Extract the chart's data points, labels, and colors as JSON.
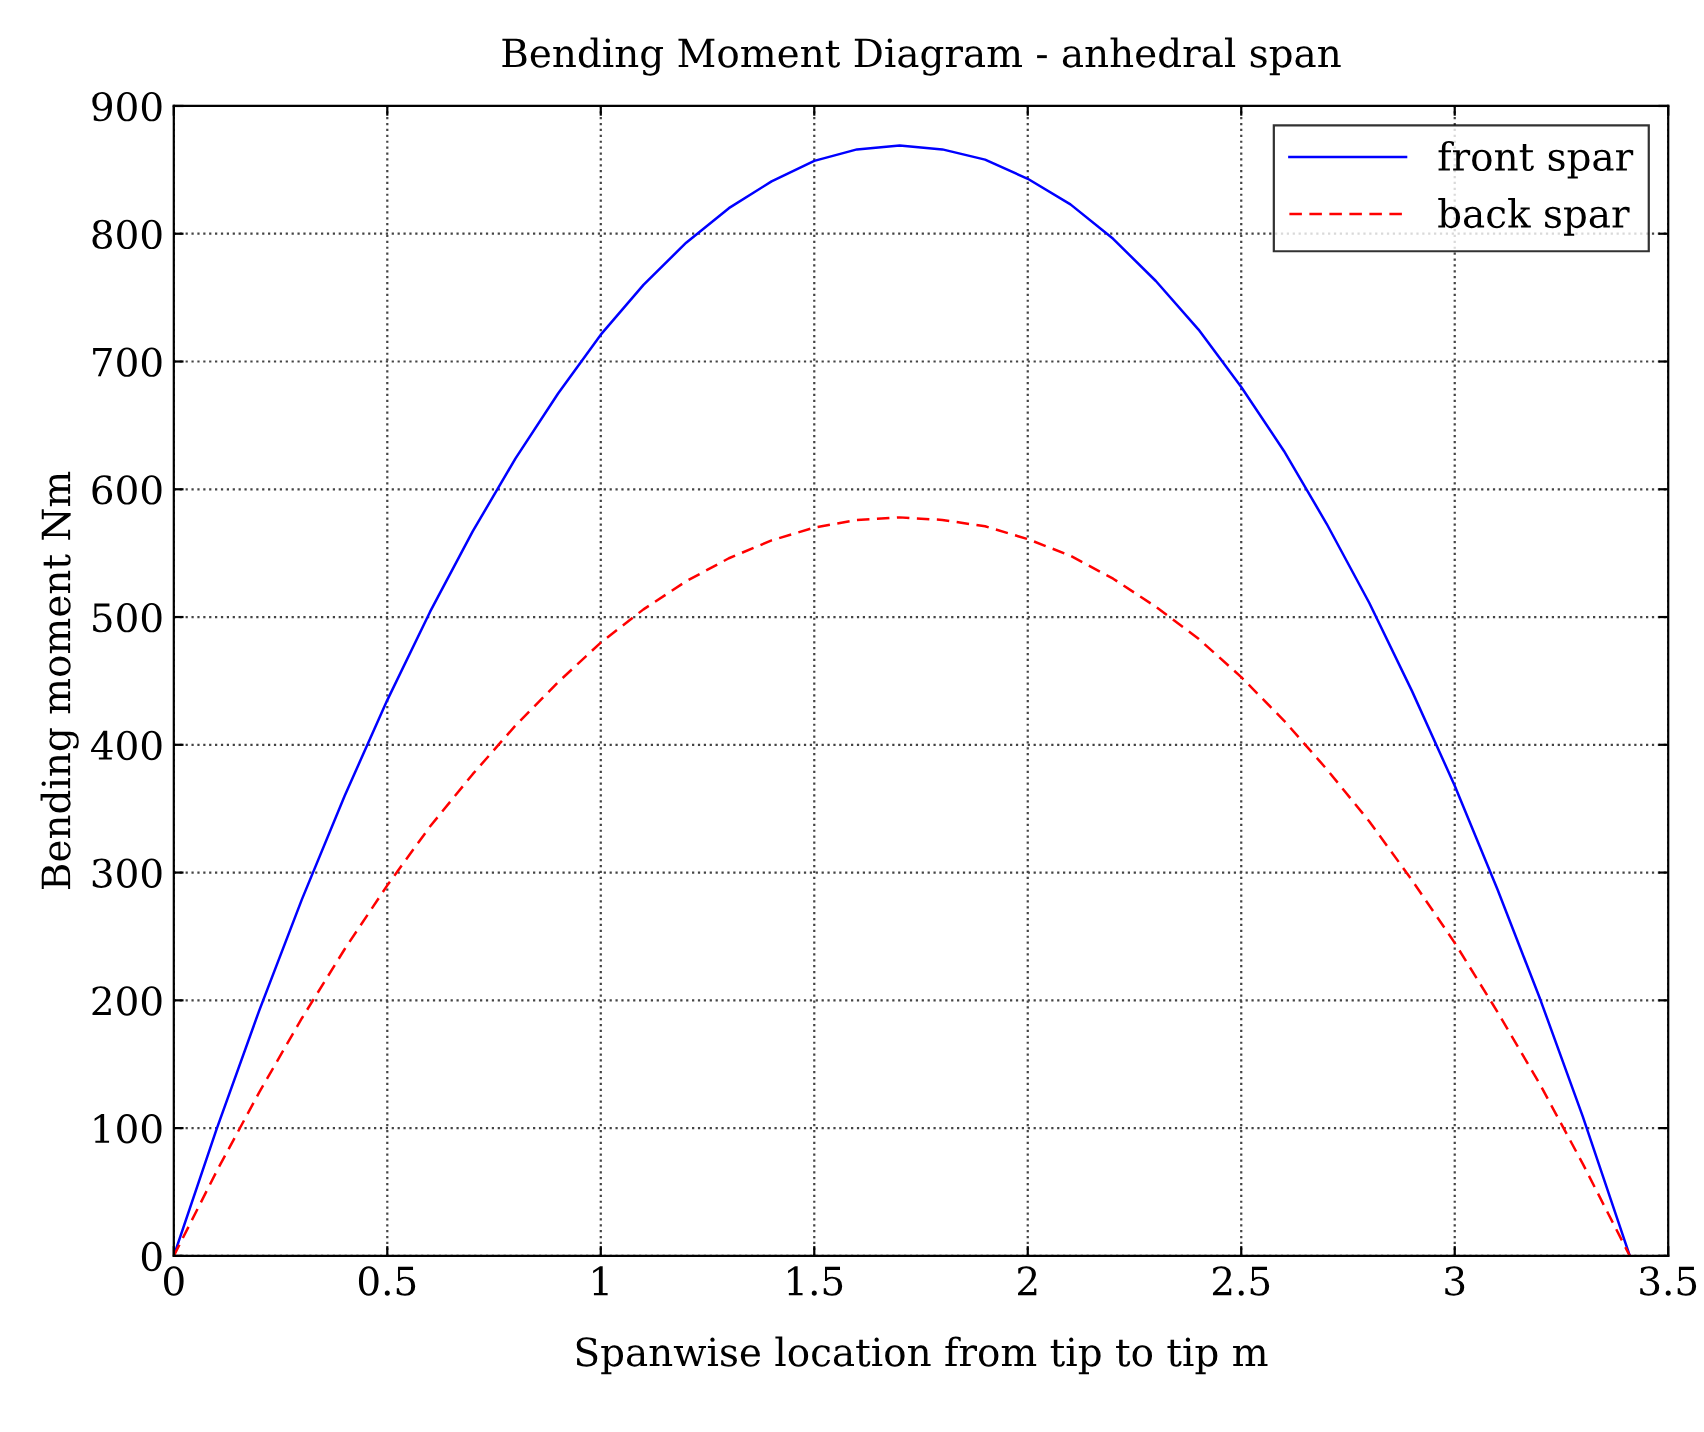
{
  "chart_data": {
    "type": "line",
    "title": "Bending Moment Diagram - anhedral span",
    "xlabel": "Spanwise location from tip to tip m",
    "ylabel": "Bending moment Nm",
    "x": [
      0,
      0.1,
      0.2,
      0.3,
      0.4,
      0.5,
      0.6,
      0.7,
      0.8,
      0.9,
      1.0,
      1.1,
      1.2,
      1.3,
      1.4,
      1.5,
      1.6,
      1.7,
      1.8,
      1.9,
      2.0,
      2.1,
      2.2,
      2.3,
      2.4,
      2.5,
      2.6,
      2.7,
      2.8,
      2.9,
      3.0,
      3.1,
      3.2,
      3.3,
      3.41
    ],
    "series": [
      {
        "name": "front spar",
        "color": "#0000ff",
        "line_style": "solid",
        "values": [
          0,
          99,
          192,
          279,
          360,
          435,
          504,
          567,
          624,
          675,
          721,
          760,
          793,
          820,
          841,
          857,
          866,
          869,
          866,
          858,
          843,
          823,
          796,
          763,
          725,
          680,
          630,
          573,
          511,
          442,
          368,
          287,
          201,
          109,
          0
        ]
      },
      {
        "name": "back spar",
        "color": "#ff0000",
        "line_style": "dashed",
        "values": [
          0,
          66,
          128,
          186,
          240,
          290,
          336,
          377,
          415,
          449,
          480,
          506,
          528,
          546,
          560,
          570,
          576,
          578,
          576,
          571,
          561,
          548,
          530,
          508,
          483,
          453,
          419,
          381,
          340,
          294,
          245,
          191,
          134,
          72,
          0
        ]
      }
    ],
    "xlim": [
      0,
      3.5
    ],
    "ylim": [
      0,
      900
    ],
    "xticks": [
      0,
      0.5,
      1,
      1.5,
      2,
      2.5,
      3,
      3.5
    ],
    "yticks": [
      0,
      100,
      200,
      300,
      400,
      500,
      600,
      700,
      800,
      900
    ],
    "grid": true,
    "legend": "top right"
  }
}
